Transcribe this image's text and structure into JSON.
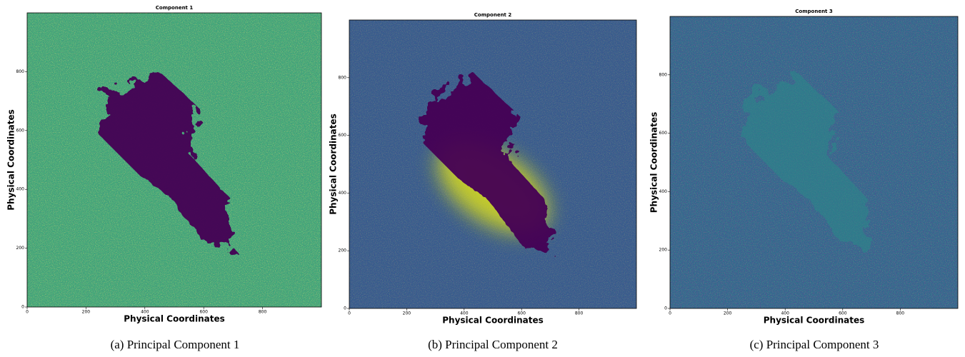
{
  "chart_data": [
    {
      "type": "image",
      "title": "Component 1",
      "xlabel": "Physical Coordinates",
      "ylabel": "Physical Coordinates",
      "caption": "(a) Principal Component 1",
      "xlim": [
        0,
        1000
      ],
      "ylim": [
        0,
        1000
      ],
      "xticks": [
        0,
        200,
        400,
        600,
        800
      ],
      "yticks": [
        0,
        200,
        400,
        600,
        800
      ]
    },
    {
      "type": "image",
      "title": "Component 2",
      "xlabel": "Physical Coordinates",
      "ylabel": "Physical Coordinates",
      "caption": "(b) Principal Component 2",
      "xlim": [
        0,
        1000
      ],
      "ylim": [
        0,
        1000
      ],
      "xticks": [
        0,
        200,
        400,
        600,
        800
      ],
      "yticks": [
        0,
        200,
        400,
        600,
        800
      ]
    },
    {
      "type": "image",
      "title": "Component 3",
      "xlabel": "Physical Coordinates",
      "ylabel": "Physical Coordinates",
      "caption": "(c) Principal Component 3",
      "xlim": [
        0,
        1000
      ],
      "ylim": [
        0,
        1000
      ],
      "xticks": [
        0,
        200,
        400,
        600,
        800
      ],
      "yticks": [
        0,
        200,
        400,
        600,
        800
      ]
    }
  ]
}
